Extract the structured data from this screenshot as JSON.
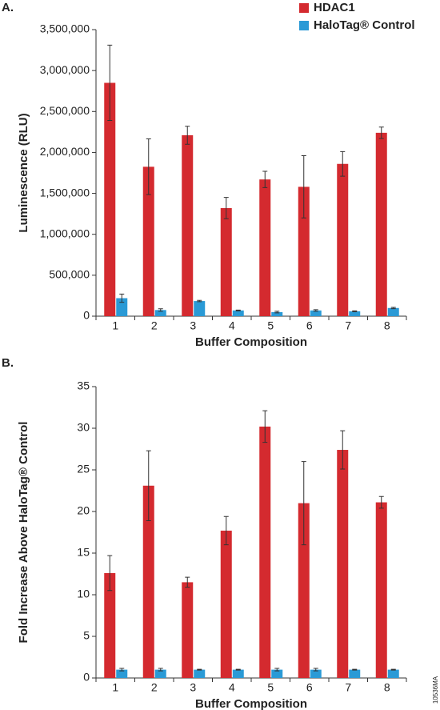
{
  "chart_data": [
    {
      "type": "bar",
      "panel": "A.",
      "ylabel": "Luminescence (RLU)",
      "xlabel": "Buffer Composition",
      "categories": [
        "1",
        "2",
        "3",
        "4",
        "5",
        "6",
        "7",
        "8"
      ],
      "series": [
        {
          "name": "HDAC1",
          "color": "#d42a2f",
          "values": [
            2850000,
            1825000,
            2210000,
            1320000,
            1670000,
            1580000,
            1860000,
            2240000
          ],
          "errors": [
            460000,
            340000,
            110000,
            130000,
            100000,
            380000,
            150000,
            70000
          ]
        },
        {
          "name": "HaloTag® Control",
          "color": "#2a9ad6",
          "values": [
            220000,
            75000,
            185000,
            70000,
            50000,
            70000,
            60000,
            100000
          ],
          "errors": [
            50000,
            15000,
            8000,
            5000,
            10000,
            10000,
            5000,
            8000
          ]
        }
      ],
      "ylim": [
        0,
        3500000
      ],
      "yticks": [
        0,
        {
          "value": 500000,
          "label": "500,000"
        },
        {
          "value": 1000000,
          "label": "1,000,000"
        },
        {
          "value": 1500000,
          "label": "1,500,000"
        },
        {
          "value": 2000000,
          "label": "2,000,000"
        },
        {
          "value": 2500000,
          "label": "2,500,000"
        },
        {
          "value": 3000000,
          "label": "3,000,000"
        },
        {
          "value": 3500000,
          "label": "3,500,000"
        }
      ],
      "legend": "top-right"
    },
    {
      "type": "bar",
      "panel": "B.",
      "ylabel": "Fold Increase Above HaloTag® Control",
      "xlabel": "Buffer Composition",
      "categories": [
        "1",
        "2",
        "3",
        "4",
        "5",
        "6",
        "7",
        "8"
      ],
      "series": [
        {
          "name": "HDAC1",
          "color": "#d42a2f",
          "values": [
            12.6,
            23.1,
            11.5,
            17.7,
            30.2,
            21.0,
            27.4,
            21.1
          ],
          "errors": [
            2.1,
            4.2,
            0.6,
            1.7,
            1.9,
            5.0,
            2.3,
            0.7
          ]
        },
        {
          "name": "HaloTag® Control",
          "color": "#2a9ad6",
          "values": [
            1,
            1,
            1,
            1,
            1,
            1,
            1,
            1
          ],
          "errors": [
            0.15,
            0.15,
            0.05,
            0.05,
            0.15,
            0.15,
            0.05,
            0.05
          ]
        }
      ],
      "ylim": [
        0,
        35
      ],
      "yticks": [
        0,
        5,
        10,
        15,
        20,
        25,
        30,
        35
      ]
    }
  ],
  "note": "10536MA"
}
